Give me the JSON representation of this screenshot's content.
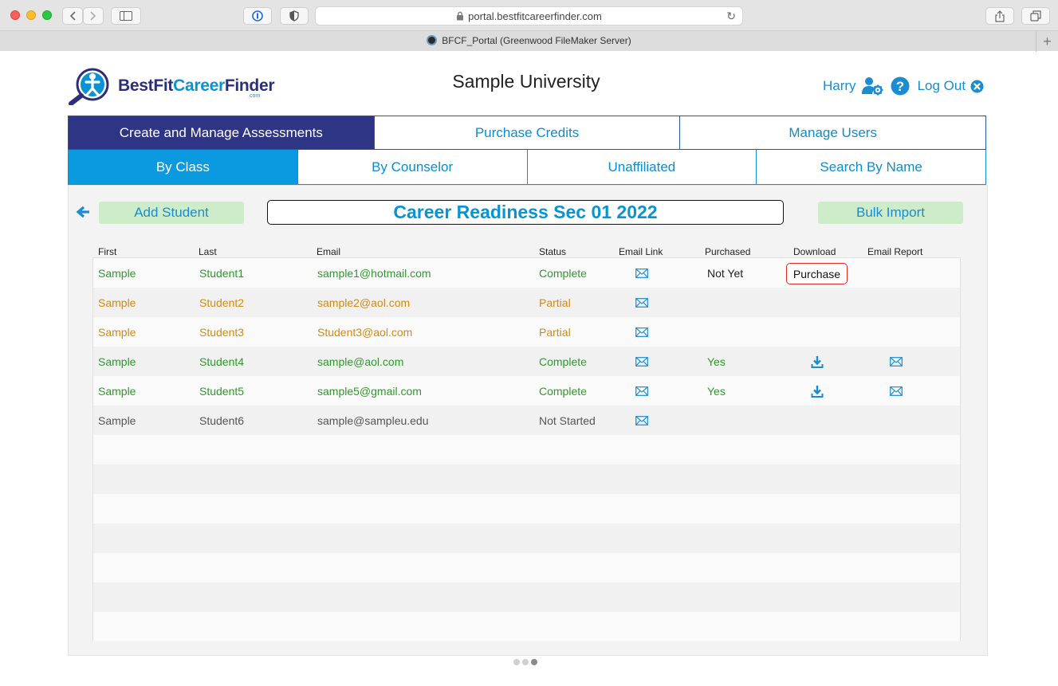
{
  "browser": {
    "url": "portal.bestfitcareerfinder.com",
    "tab_title": "BFCF_Portal (Greenwood FileMaker Server)"
  },
  "header": {
    "logo_text_a": "BestFit",
    "logo_text_b": "Career",
    "logo_text_c": "Finder",
    "logo_com": ".com",
    "org_name": "Sample University",
    "user_name": "Harry",
    "logout_label": "Log Out"
  },
  "nav_primary": [
    {
      "label": "Create and Manage Assessments",
      "active": true
    },
    {
      "label": "Purchase Credits",
      "active": false
    },
    {
      "label": "Manage Users",
      "active": false
    }
  ],
  "nav_secondary": [
    {
      "label": "By Class",
      "active": true
    },
    {
      "label": "By Counselor",
      "active": false
    },
    {
      "label": "Unaffiliated",
      "active": false
    },
    {
      "label": "Search By Name",
      "active": false
    }
  ],
  "toolbar": {
    "add_student": "Add Student",
    "class_title": "Career Readiness Sec 01 2022",
    "bulk_import": "Bulk Import"
  },
  "table": {
    "columns": [
      "First",
      "Last",
      "Email",
      "Status",
      "Email Link",
      "Purchased",
      "Download",
      "Email Report"
    ],
    "rows": [
      {
        "first": "Sample",
        "last": "Student1",
        "email": "sample1@hotmail.com",
        "status": "Complete",
        "purchased": "Not Yet",
        "download": "Purchase",
        "color": "green"
      },
      {
        "first": "Sample",
        "last": "Student2",
        "email": "sample2@aol.com",
        "status": "Partial",
        "purchased": "",
        "download": "",
        "color": "orange"
      },
      {
        "first": "Sample",
        "last": "Student3",
        "email": "Student3@aol.com",
        "status": "Partial",
        "purchased": "",
        "download": "",
        "color": "orange"
      },
      {
        "first": "Sample",
        "last": "Student4",
        "email": "sample@aol.com",
        "status": "Complete",
        "purchased": "Yes",
        "download": "download-icon",
        "color": "green"
      },
      {
        "first": "Sample",
        "last": "Student5",
        "email": "sample5@gmail.com",
        "status": "Complete",
        "purchased": "Yes",
        "download": "download-icon",
        "color": "green"
      },
      {
        "first": "Sample",
        "last": "Student6",
        "email": "sample@sampleu.edu",
        "status": "Not Started",
        "purchased": "",
        "download": "",
        "color": "gray"
      }
    ]
  },
  "colors": {
    "brand_dark": "#2d3584",
    "brand_blue": "#0b9ae0",
    "status_complete": "#2f9a2b",
    "status_partial": "#d38a13",
    "status_not_started": "#555555"
  }
}
